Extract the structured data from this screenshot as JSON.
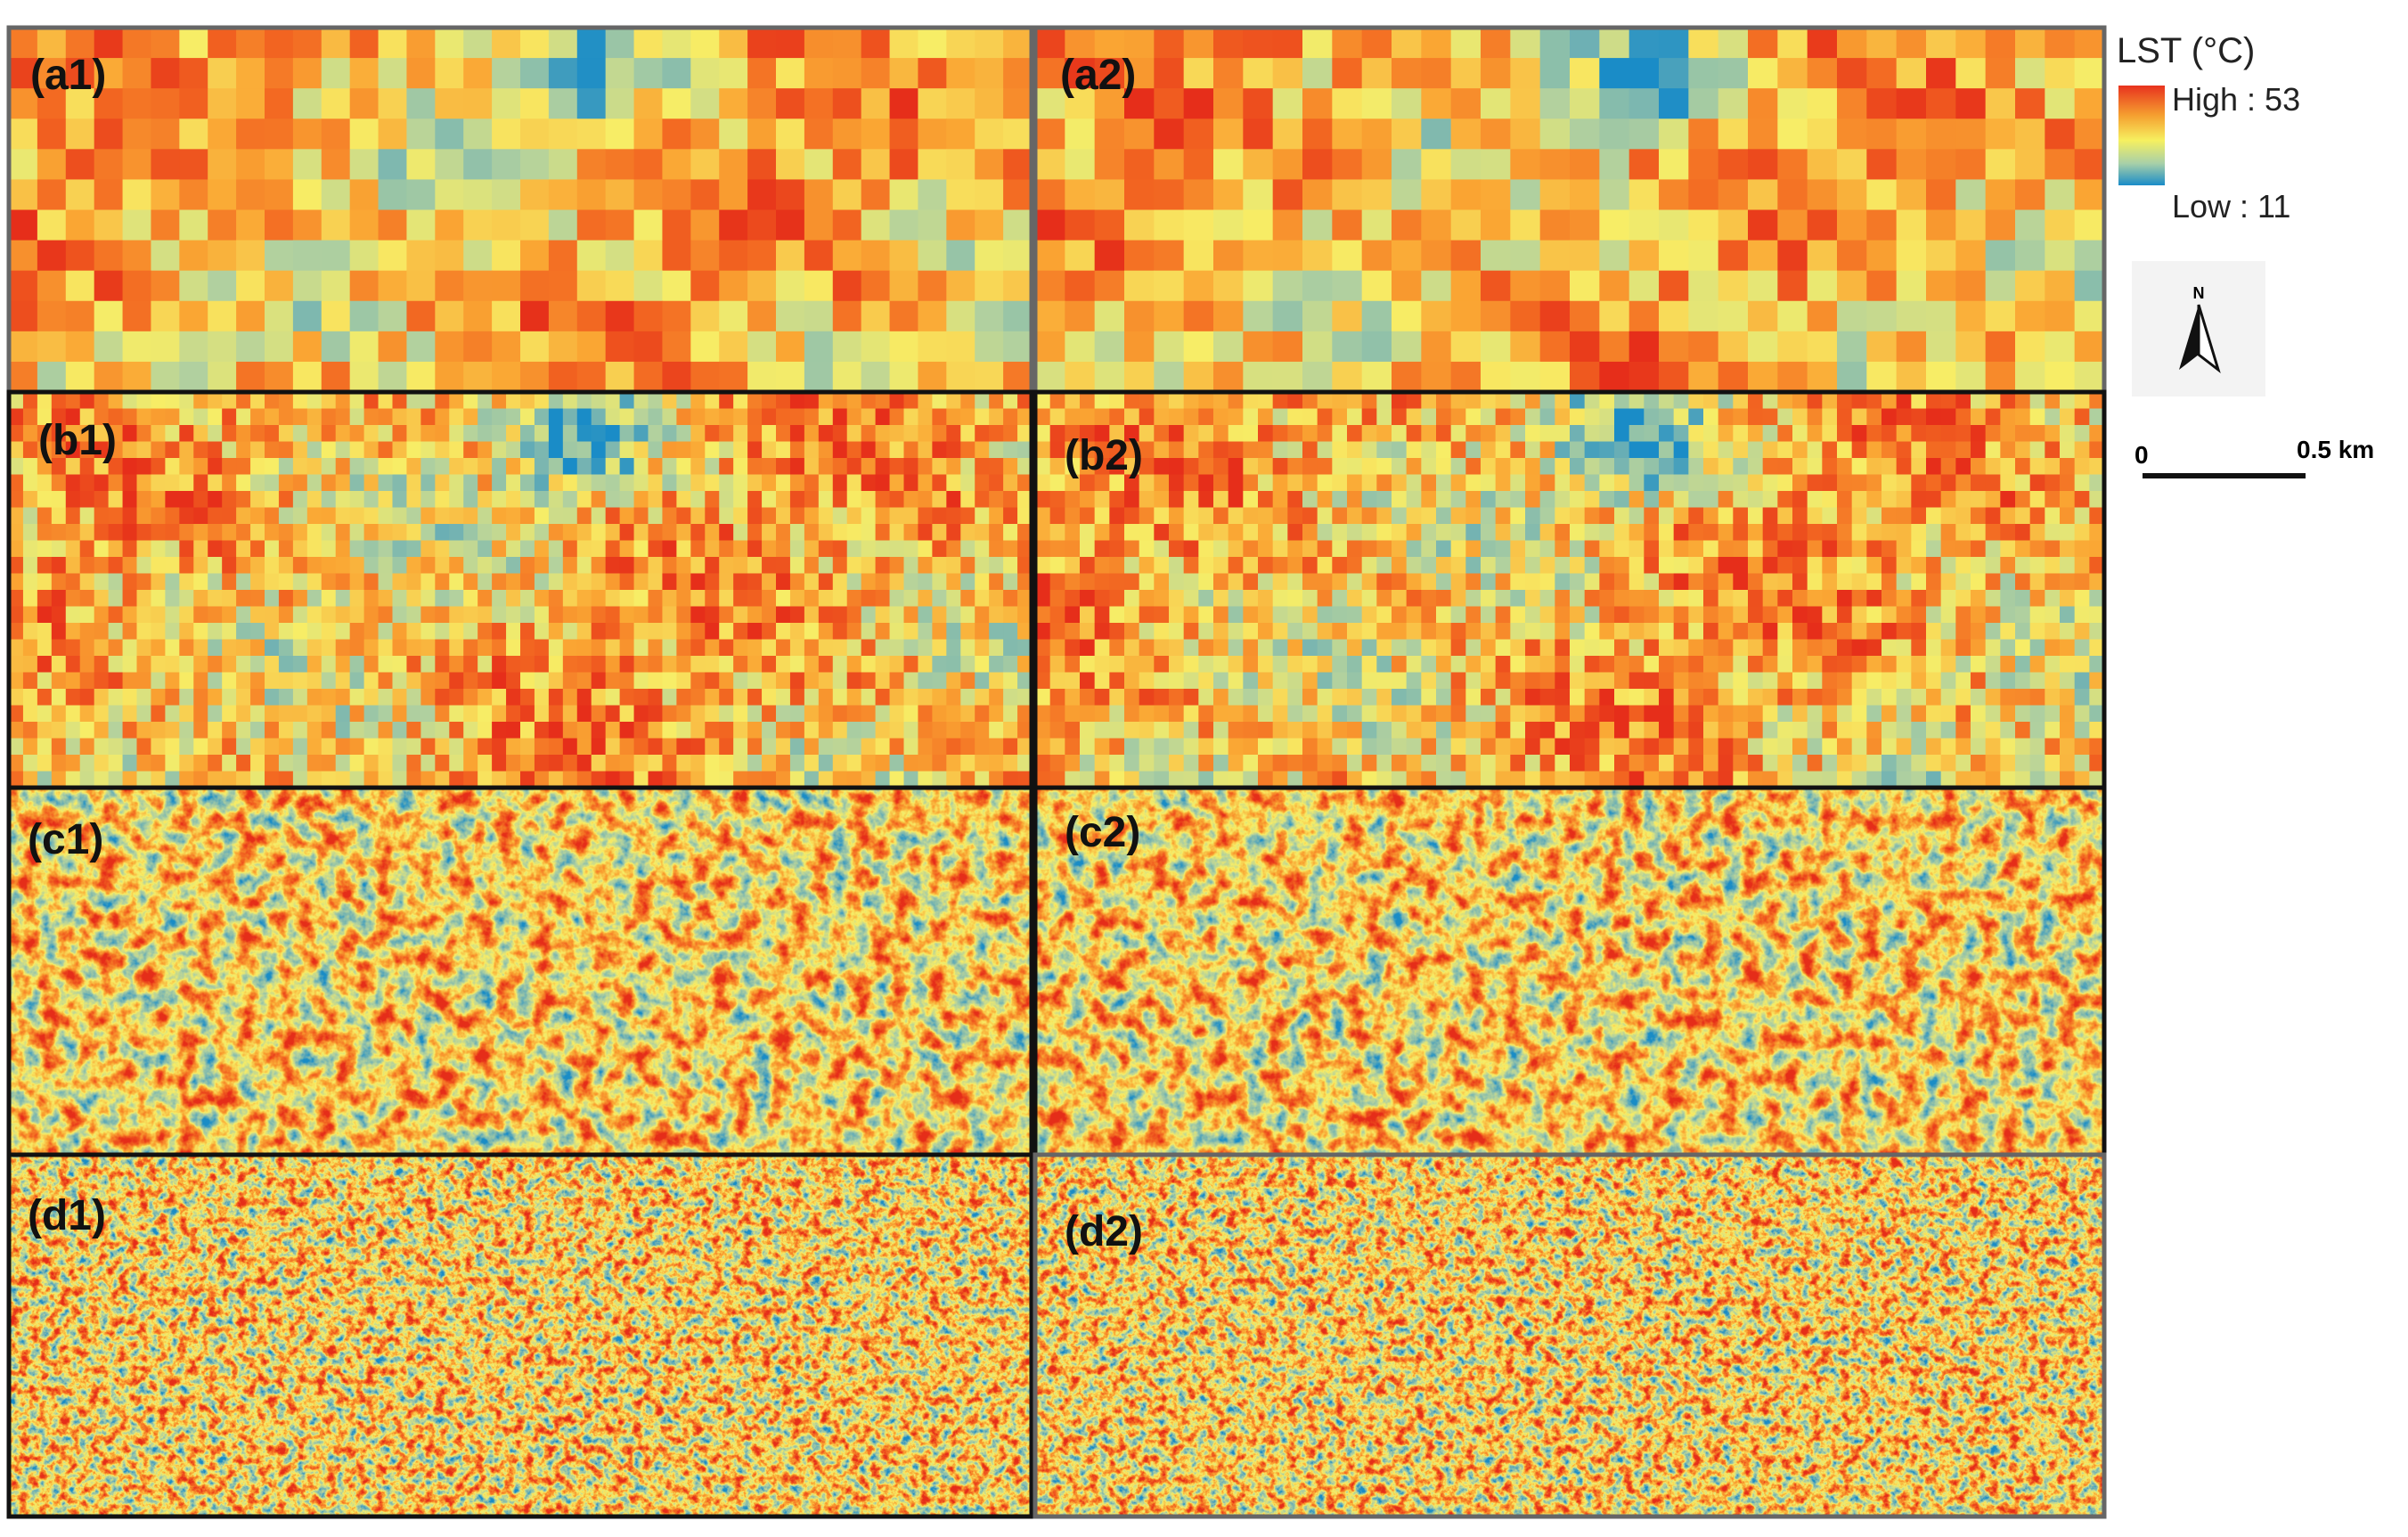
{
  "panels": [
    {
      "label": "(a1)"
    },
    {
      "label": "(a2)"
    },
    {
      "label": "(b1)"
    },
    {
      "label": "(b2)"
    },
    {
      "label": "(c1)"
    },
    {
      "label": "(c2)"
    },
    {
      "label": "(d1)"
    },
    {
      "label": "(d2)"
    }
  ],
  "legend": {
    "title": "LST (°C)",
    "high": "High : 53",
    "low": "Low : 11"
  },
  "north": "N",
  "scale": {
    "start": "0",
    "end": "0.5 km"
  }
}
